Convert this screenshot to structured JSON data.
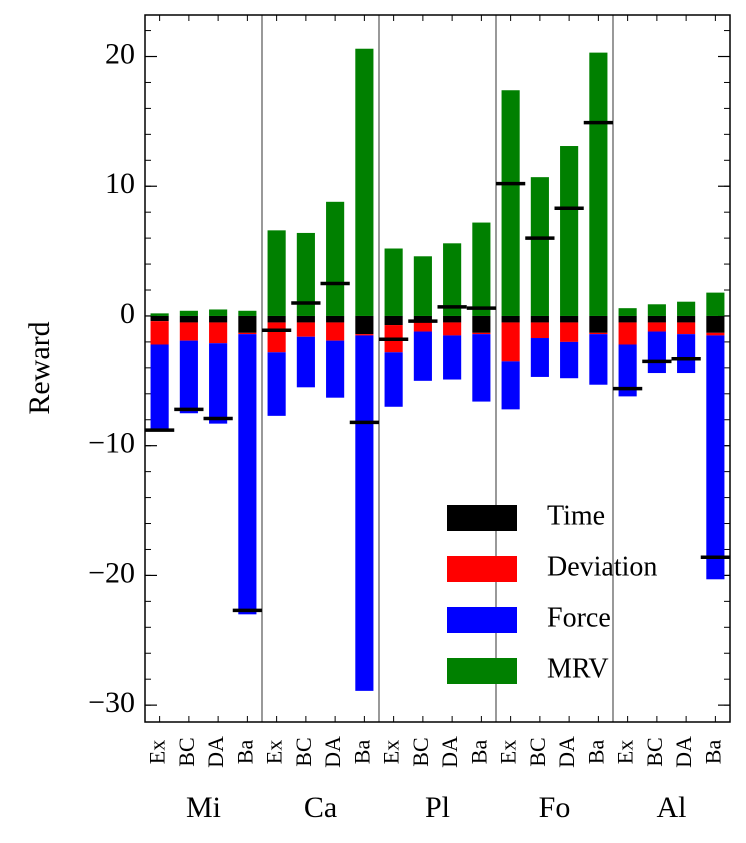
{
  "chart_data": {
    "type": "bar",
    "stacked": true,
    "y_label": "Reward",
    "categories": [
      "Ex",
      "BC",
      "DA",
      "Ba",
      "Ex",
      "BC",
      "DA",
      "Ba",
      "Ex",
      "BC",
      "DA",
      "Ba",
      "Ex",
      "BC",
      "DA",
      "Ba",
      "Ex",
      "BC",
      "DA",
      "Ba"
    ],
    "groups": [
      "Mi",
      "Ca",
      "Pl",
      "Fo",
      "Al"
    ],
    "series": [
      {
        "name": "Time",
        "color": "#000000",
        "values": [
          -0.4,
          -0.5,
          -0.5,
          -1.3,
          -0.5,
          -0.5,
          -0.5,
          -1.4,
          -0.7,
          -0.5,
          -0.5,
          -1.3,
          -0.5,
          -0.5,
          -0.5,
          -1.3,
          -0.5,
          -0.5,
          -0.5,
          -1.3
        ]
      },
      {
        "name": "Deviation",
        "color": "#ff0000",
        "values": [
          -1.8,
          -1.4,
          -1.6,
          -0.1,
          -2.3,
          -1.1,
          -1.4,
          -0.1,
          -2.1,
          -0.7,
          -1.0,
          -0.1,
          -3.0,
          -1.2,
          -1.5,
          -0.1,
          -1.7,
          -0.7,
          -0.9,
          -0.2
        ]
      },
      {
        "name": "Force",
        "color": "#0000ff",
        "values": [
          -6.6,
          -5.6,
          -6.2,
          -21.6,
          -4.9,
          -3.9,
          -4.4,
          -27.4,
          -4.2,
          -3.8,
          -3.4,
          -5.2,
          -3.7,
          -3.0,
          -2.8,
          -3.9,
          -4.0,
          -3.2,
          -3.0,
          -18.8
        ]
      },
      {
        "name": "MRV",
        "color": "#008000",
        "values": [
          0.2,
          0.4,
          0.5,
          0.4,
          6.6,
          6.4,
          8.8,
          20.6,
          5.2,
          4.6,
          5.6,
          7.2,
          17.4,
          10.7,
          13.1,
          20.3,
          0.6,
          0.9,
          1.1,
          1.8
        ]
      }
    ],
    "totals": [
      -8.8,
      -7.2,
      -7.9,
      -22.7,
      -1.1,
      1.0,
      2.5,
      -8.2,
      -1.8,
      -0.4,
      0.7,
      0.6,
      10.2,
      6.0,
      8.3,
      14.9,
      -5.6,
      -3.5,
      -3.3,
      -18.6
    ],
    "totals_color": "#000000",
    "ylim": [
      -31.3,
      23.2
    ],
    "yticks": [
      {
        "value": -30,
        "label": "−30"
      },
      {
        "value": -20,
        "label": "−20"
      },
      {
        "value": -10,
        "label": "−10"
      },
      0,
      10,
      20
    ],
    "yminorticks": [
      -30,
      -28,
      -26,
      -24,
      -22,
      -20,
      -18,
      -16,
      -14,
      -12,
      -10,
      -8,
      -6,
      -4,
      -2,
      0,
      2,
      4,
      6,
      8,
      10,
      12,
      14,
      16,
      18,
      20,
      22
    ],
    "legend": "lower right",
    "grid": false
  }
}
